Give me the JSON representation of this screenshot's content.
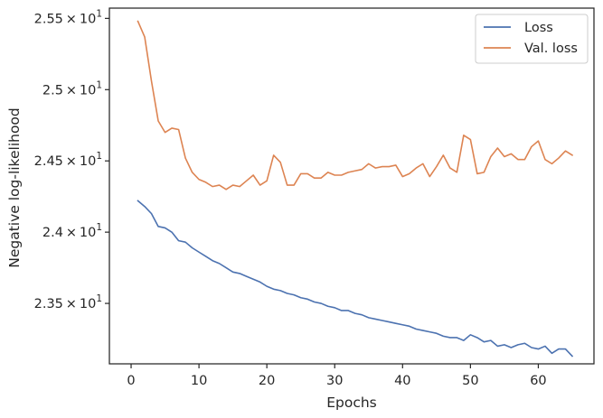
{
  "chart_data": {
    "type": "line",
    "xlabel": "Epochs",
    "ylabel": "Negative log-likelihood",
    "xlim": [
      -3.2,
      68.2
    ],
    "ylim": [
      23.076,
      25.572
    ],
    "xticks": [
      0,
      10,
      20,
      30,
      40,
      50,
      60
    ],
    "yticks": [
      {
        "value": 23.5,
        "mant": "2.35",
        "exp": "1"
      },
      {
        "value": 24.0,
        "mant": "2.4",
        "exp": "1"
      },
      {
        "value": 24.5,
        "mant": "2.45",
        "exp": "1"
      },
      {
        "value": 25.0,
        "mant": "2.5",
        "exp": "1"
      },
      {
        "value": 25.5,
        "mant": "2.55",
        "exp": "1"
      }
    ],
    "grid": false,
    "legend_position": "top-right",
    "x": [
      1,
      2,
      3,
      4,
      5,
      6,
      7,
      8,
      9,
      10,
      11,
      12,
      13,
      14,
      15,
      16,
      17,
      18,
      19,
      20,
      21,
      22,
      23,
      24,
      25,
      26,
      27,
      28,
      29,
      30,
      31,
      32,
      33,
      34,
      35,
      36,
      37,
      38,
      39,
      40,
      41,
      42,
      43,
      44,
      45,
      46,
      47,
      48,
      49,
      50,
      51,
      52,
      53,
      54,
      55,
      56,
      57,
      58,
      59,
      60,
      61,
      62,
      63,
      64,
      65
    ],
    "series": [
      {
        "name": "Loss",
        "color": "#4c72b0",
        "values": [
          24.22,
          24.18,
          24.13,
          24.04,
          24.03,
          24.0,
          23.94,
          23.93,
          23.89,
          23.86,
          23.83,
          23.8,
          23.78,
          23.75,
          23.72,
          23.71,
          23.69,
          23.67,
          23.65,
          23.62,
          23.6,
          23.59,
          23.57,
          23.56,
          23.54,
          23.53,
          23.51,
          23.5,
          23.48,
          23.47,
          23.45,
          23.45,
          23.43,
          23.42,
          23.4,
          23.39,
          23.38,
          23.37,
          23.36,
          23.35,
          23.34,
          23.32,
          23.31,
          23.3,
          23.29,
          23.27,
          23.26,
          23.26,
          23.24,
          23.28,
          23.26,
          23.23,
          23.24,
          23.2,
          23.21,
          23.19,
          23.21,
          23.22,
          23.19,
          23.18,
          23.2,
          23.15,
          23.18,
          23.18,
          23.13
        ]
      },
      {
        "name": "Val. loss",
        "color": "#dd8452",
        "values": [
          25.48,
          25.37,
          25.06,
          24.78,
          24.7,
          24.73,
          24.72,
          24.52,
          24.42,
          24.37,
          24.35,
          24.32,
          24.33,
          24.3,
          24.33,
          24.32,
          24.36,
          24.4,
          24.33,
          24.36,
          24.54,
          24.49,
          24.33,
          24.33,
          24.41,
          24.41,
          24.38,
          24.38,
          24.42,
          24.4,
          24.4,
          24.42,
          24.43,
          24.44,
          24.48,
          24.45,
          24.46,
          24.46,
          24.47,
          24.39,
          24.41,
          24.45,
          24.48,
          24.39,
          24.46,
          24.54,
          24.45,
          24.42,
          24.68,
          24.65,
          24.41,
          24.42,
          24.53,
          24.59,
          24.53,
          24.55,
          24.51,
          24.51,
          24.6,
          24.64,
          24.51,
          24.48,
          24.52,
          24.57,
          24.54
        ]
      }
    ]
  }
}
